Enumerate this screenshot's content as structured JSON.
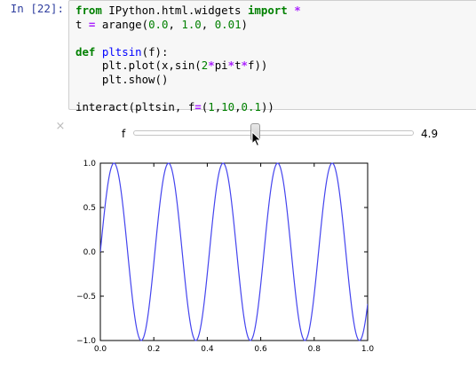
{
  "cell": {
    "prompt": "In [22]:",
    "code_lines": [
      "from IPython.html.widgets import *",
      "t = arange(0.0, 1.0, 0.01)",
      "",
      "def pltsin(f):",
      "    plt.plot(x,sin(2*pi*t*f))",
      "    plt.show()",
      "",
      "interact(pltsin, f=(1,10,0.1))"
    ]
  },
  "widget": {
    "close_glyph": "×",
    "slider_label": "f",
    "slider_min": 1,
    "slider_max": 10,
    "slider_step": 0.1,
    "slider_value": 4.9,
    "slider_value_text": "4.9",
    "cursor_icon": "arrow-cursor-icon"
  },
  "chart_data": {
    "type": "line",
    "title": "",
    "xlabel": "",
    "ylabel": "",
    "xlim": [
      0.0,
      1.0
    ],
    "ylim": [
      -1.0,
      1.0
    ],
    "x_ticks": [
      "0.0",
      "0.2",
      "0.4",
      "0.6",
      "0.8",
      "1.0"
    ],
    "y_ticks": [
      "1.0",
      "0.5",
      "0.0",
      "−0.5",
      "−1.0"
    ],
    "grid": false,
    "series": [
      {
        "function": "sin(2*pi*t*f)",
        "f": 4.9,
        "x_start": 0.0,
        "x_end": 1.0,
        "x_step": 0.01,
        "color": "#4444ee"
      }
    ]
  },
  "colors": {
    "prompt": "#303F9F",
    "keyword": "#008000",
    "function_name": "#0000ff",
    "operator": "#aa22ff",
    "cell_background": "#f7f7f7",
    "line": "#4444ee"
  }
}
